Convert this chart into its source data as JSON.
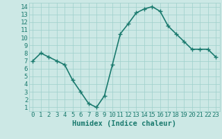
{
  "x": [
    0,
    1,
    2,
    3,
    4,
    5,
    6,
    7,
    8,
    9,
    10,
    11,
    12,
    13,
    14,
    15,
    16,
    17,
    18,
    19,
    20,
    21,
    22,
    23
  ],
  "y": [
    7.0,
    8.0,
    7.5,
    7.0,
    6.5,
    4.5,
    3.0,
    1.5,
    1.0,
    2.5,
    6.5,
    10.5,
    11.8,
    13.2,
    13.7,
    14.0,
    13.4,
    11.5,
    10.5,
    9.5,
    8.5,
    8.5,
    8.5,
    7.5
  ],
  "line_color": "#1a7a6e",
  "marker_color": "#1a7a6e",
  "bg_color": "#cce8e5",
  "grid_color": "#9ecfcb",
  "xlabel": "Humidex (Indice chaleur)",
  "xlabel_color": "#1a7a6e",
  "xlim": [
    -0.5,
    23.5
  ],
  "ylim": [
    0.5,
    14.5
  ],
  "yticks": [
    1,
    2,
    3,
    4,
    5,
    6,
    7,
    8,
    9,
    10,
    11,
    12,
    13,
    14
  ],
  "xticks": [
    0,
    1,
    2,
    3,
    4,
    5,
    6,
    7,
    8,
    9,
    10,
    11,
    12,
    13,
    14,
    15,
    16,
    17,
    18,
    19,
    20,
    21,
    22,
    23
  ],
  "xtick_labels": [
    "0",
    "1",
    "2",
    "3",
    "4",
    "5",
    "6",
    "7",
    "8",
    "9",
    "10",
    "11",
    "12",
    "13",
    "14",
    "15",
    "16",
    "17",
    "18",
    "19",
    "20",
    "21",
    "22",
    "23"
  ],
  "marker_size": 5,
  "line_width": 1.2,
  "font_size": 6.5,
  "xlabel_fontsize": 7.5
}
